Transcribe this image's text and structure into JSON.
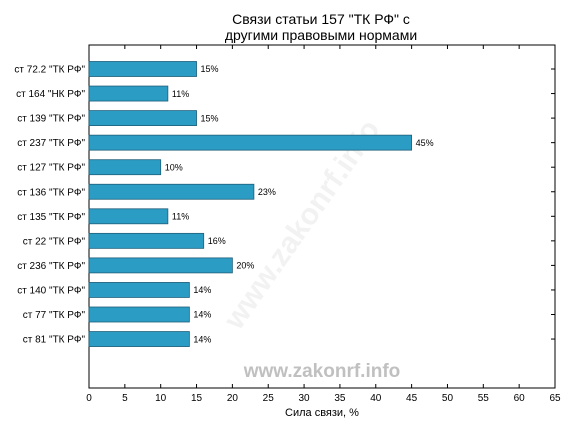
{
  "chart_data": {
    "type": "bar",
    "orientation": "horizontal",
    "title_lines": [
      "Связи статьи 157 \"ТК РФ\" с",
      "другими правовыми нормами"
    ],
    "xlabel": "Сила связи, %",
    "ylabel": "",
    "xlim": [
      0,
      65
    ],
    "xticks": [
      0,
      5,
      10,
      15,
      20,
      25,
      30,
      35,
      40,
      45,
      50,
      55,
      60,
      65
    ],
    "categories": [
      "ст 72.2 \"ТК РФ\"",
      "ст 164 \"НК РФ\"",
      "ст 139 \"ТК РФ\"",
      "ст 237 \"ТК РФ\"",
      "ст 127 \"ТК РФ\"",
      "ст 136 \"ТК РФ\"",
      "ст 135 \"ТК РФ\"",
      "ст 22 \"ТК РФ\"",
      "ст 236 \"ТК РФ\"",
      "ст 140 \"ТК РФ\"",
      "ст 77 \"ТК РФ\"",
      "ст 81 \"ТК РФ\""
    ],
    "values": [
      15,
      11,
      15,
      45,
      10,
      23,
      11,
      16,
      20,
      14,
      14,
      14
    ],
    "value_suffix": "%",
    "bar_color": "#2b9cc4",
    "bar_edge_color": "#1f5f7a",
    "grid": false,
    "watermark": "www.zakonrf.info"
  }
}
